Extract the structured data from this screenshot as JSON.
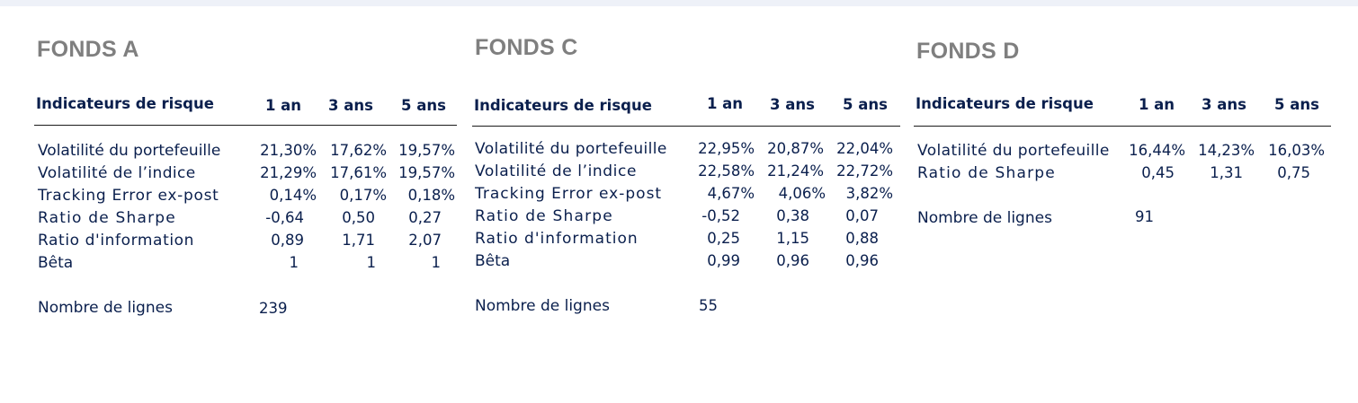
{
  "fonds_a": {
    "title": "FONDS A",
    "header": {
      "label": "Indicateurs de risque",
      "p1": "1 an",
      "p3": "3 ans",
      "p5": "5 ans"
    },
    "rows": [
      {
        "label": "Volatilité du portefeuille",
        "v1": "21,30%",
        "v3": "17,62%",
        "v5": "19,57%"
      },
      {
        "label": "Volatilité de l’indice",
        "v1": "21,29%",
        "v3": "17,61%",
        "v5": "19,57%"
      },
      {
        "label": "Tracking Error ex-post",
        "v1": "0,14%",
        "v3": "0,17%",
        "v5": "0,18%"
      },
      {
        "label": "Ratio de Sharpe",
        "v1": "-0,64",
        "v3": "0,50",
        "v5": "0,27"
      },
      {
        "label": "Ratio d'information",
        "v1": "0,89",
        "v3": "1,71",
        "v5": "2,07"
      },
      {
        "label": "Bêta",
        "v1": "1",
        "v3": "1",
        "v5": "1"
      }
    ],
    "count_label": "Nombre de lignes",
    "count_value": "239"
  },
  "fonds_c": {
    "title": "FONDS C",
    "header": {
      "label": "Indicateurs de risque",
      "p1": "1 an",
      "p3": "3 ans",
      "p5": "5 ans"
    },
    "rows": [
      {
        "label": "Volatilité du portefeuille",
        "v1": "22,95%",
        "v3": "20,87%",
        "v5": "22,04%"
      },
      {
        "label": "Volatilité de l’indice",
        "v1": "22,58%",
        "v3": "21,24%",
        "v5": "22,72%"
      },
      {
        "label": "Tracking Error ex-post",
        "v1": "4,67%",
        "v3": "4,06%",
        "v5": "3,82%"
      },
      {
        "label": "Ratio de Sharpe",
        "v1": "-0,52",
        "v3": "0,38",
        "v5": "0,07"
      },
      {
        "label": "Ratio d'information",
        "v1": "0,25",
        "v3": "1,15",
        "v5": "0,88"
      },
      {
        "label": "Bêta",
        "v1": "0,99",
        "v3": "0,96",
        "v5": "0,96"
      }
    ],
    "count_label": "Nombre de lignes",
    "count_value": "55"
  },
  "fonds_d": {
    "title": "FONDS D",
    "header": {
      "label": "Indicateurs de risque",
      "p1": "1 an",
      "p3": "3 ans",
      "p5": "5 ans"
    },
    "rows": [
      {
        "label": "Volatilité du portefeuille",
        "v1": "16,44%",
        "v3": "14,23%",
        "v5": "16,03%"
      },
      {
        "label": "Ratio de Sharpe",
        "v1": "0,45",
        "v3": "1,31",
        "v5": "0,75"
      }
    ],
    "count_label": "Nombre de lignes",
    "count_value": "91"
  }
}
